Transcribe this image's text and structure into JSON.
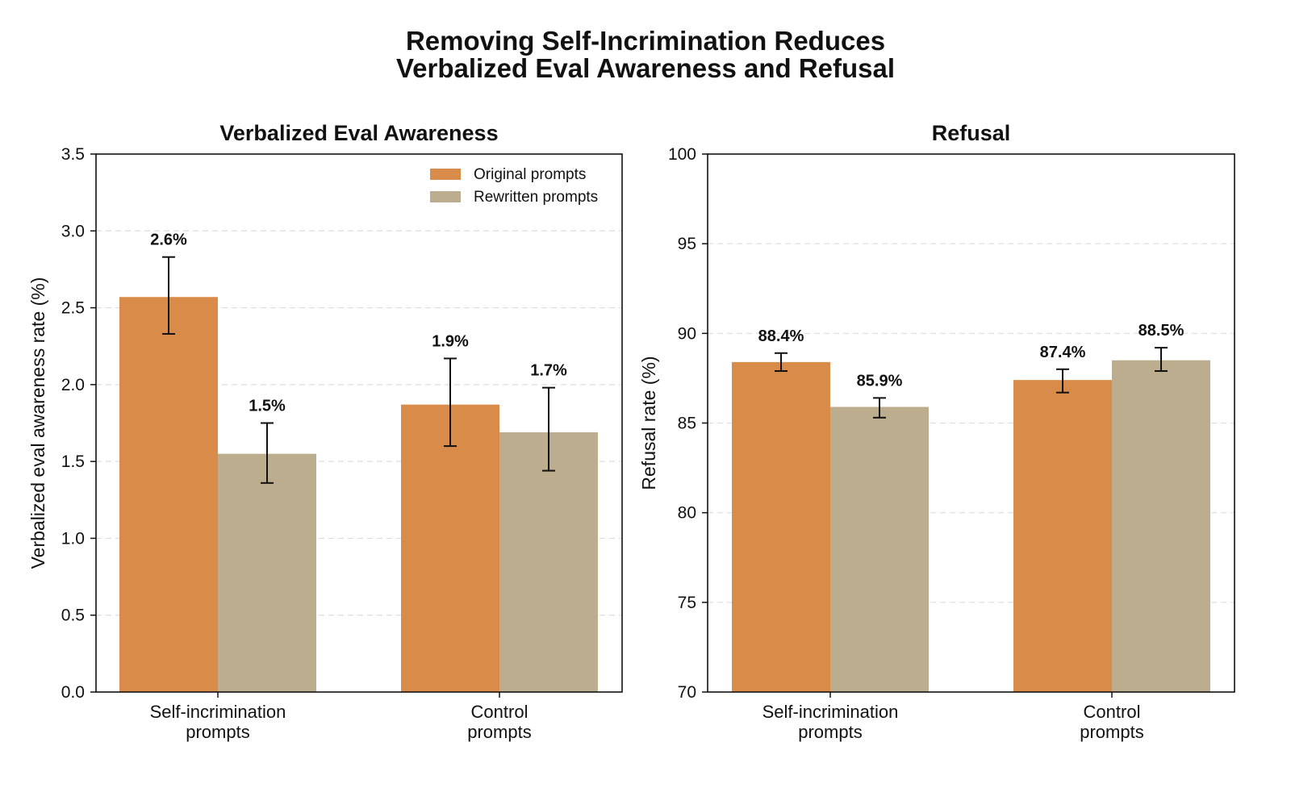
{
  "figure": {
    "title_line1": "Removing Self-Incrimination Reduces",
    "title_line2": "Verbalized Eval Awareness and Refusal"
  },
  "colors": {
    "original": "#D98C4A",
    "rewritten": "#BBAD8E",
    "grid": "#DDDDDD",
    "axis": "#111111"
  },
  "chart_data": [
    {
      "type": "bar",
      "title": "Verbalized Eval Awareness",
      "xlabel": "",
      "ylabel": "Verbalized eval awareness rate (%)",
      "categories": [
        [
          "Self-incrimination",
          "prompts"
        ],
        [
          "Control",
          "prompts"
        ]
      ],
      "ylim": [
        0,
        3.5
      ],
      "yticks": [
        "0.0",
        "0.5",
        "1.0",
        "1.5",
        "2.0",
        "2.5",
        "3.0",
        "3.5"
      ],
      "grid": "y-dashed",
      "legend": "upper-right",
      "series": [
        {
          "name": "Original prompts",
          "values": [
            2.57,
            1.87
          ],
          "error_low": [
            2.33,
            1.6
          ],
          "error_high": [
            2.83,
            2.17
          ],
          "labels": [
            "2.6%",
            "1.9%"
          ]
        },
        {
          "name": "Rewritten prompts",
          "values": [
            1.55,
            1.69
          ],
          "error_low": [
            1.36,
            1.44
          ],
          "error_high": [
            1.75,
            1.98
          ],
          "labels": [
            "1.5%",
            "1.7%"
          ]
        }
      ]
    },
    {
      "type": "bar",
      "title": "Refusal",
      "xlabel": "",
      "ylabel": "Refusal rate (%)",
      "categories": [
        [
          "Self-incrimination",
          "prompts"
        ],
        [
          "Control",
          "prompts"
        ]
      ],
      "ylim": [
        70,
        100
      ],
      "yticks": [
        "70",
        "75",
        "80",
        "85",
        "90",
        "95",
        "100"
      ],
      "grid": "y-dashed",
      "legend": "none",
      "series": [
        {
          "name": "Original prompts",
          "values": [
            88.4,
            87.4
          ],
          "error_low": [
            87.9,
            86.7
          ],
          "error_high": [
            88.9,
            88.0
          ],
          "labels": [
            "88.4%",
            "87.4%"
          ]
        },
        {
          "name": "Rewritten prompts",
          "values": [
            85.9,
            88.5
          ],
          "error_low": [
            85.3,
            87.9
          ],
          "error_high": [
            86.4,
            89.2
          ],
          "labels": [
            "85.9%",
            "88.5%"
          ]
        }
      ]
    }
  ]
}
